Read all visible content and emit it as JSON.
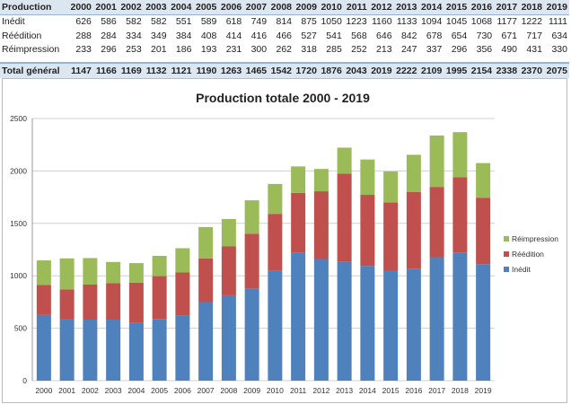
{
  "table": {
    "header_label": "Production",
    "years": [
      "2000",
      "2001",
      "2002",
      "2003",
      "2004",
      "2005",
      "2006",
      "2007",
      "2008",
      "2009",
      "2010",
      "2011",
      "2012",
      "2013",
      "2014",
      "2015",
      "2016",
      "2017",
      "2018",
      "2019"
    ],
    "rows": [
      {
        "label": "Inédit",
        "values": [
          626,
          586,
          582,
          582,
          551,
          589,
          618,
          749,
          814,
          875,
          1050,
          1223,
          1160,
          1133,
          1094,
          1045,
          1068,
          1177,
          1222,
          1111
        ]
      },
      {
        "label": "Réédition",
        "values": [
          288,
          284,
          334,
          349,
          384,
          408,
          414,
          416,
          466,
          527,
          541,
          568,
          646,
          842,
          678,
          654,
          730,
          671,
          717,
          634
        ]
      },
      {
        "label": "Réimpression",
        "values": [
          233,
          296,
          253,
          201,
          186,
          193,
          231,
          300,
          262,
          318,
          285,
          252,
          213,
          247,
          337,
          296,
          356,
          490,
          431,
          330
        ]
      }
    ],
    "total": {
      "label": "Total général",
      "values": [
        1147,
        1166,
        1169,
        1132,
        1121,
        1190,
        1263,
        1465,
        1542,
        1720,
        1876,
        2043,
        2019,
        2222,
        2109,
        1995,
        2154,
        2338,
        2370,
        2075
      ]
    }
  },
  "chart_data": {
    "type": "bar",
    "stacked": true,
    "title": "Production totale 2000 - 2019",
    "categories": [
      "2000",
      "2001",
      "2002",
      "2003",
      "2004",
      "2005",
      "2006",
      "2007",
      "2008",
      "2009",
      "2010",
      "2011",
      "2012",
      "2013",
      "2014",
      "2015",
      "2016",
      "2017",
      "2018",
      "2019"
    ],
    "series": [
      {
        "name": "Inédit",
        "color": "#4f81bd",
        "values": [
          626,
          586,
          582,
          582,
          551,
          589,
          618,
          749,
          814,
          875,
          1050,
          1223,
          1160,
          1133,
          1094,
          1045,
          1068,
          1177,
          1222,
          1111
        ]
      },
      {
        "name": "Réédition",
        "color": "#c0504d",
        "values": [
          288,
          284,
          334,
          349,
          384,
          408,
          414,
          416,
          466,
          527,
          541,
          568,
          646,
          842,
          678,
          654,
          730,
          671,
          717,
          634
        ]
      },
      {
        "name": "Réimpression",
        "color": "#9bbb59",
        "values": [
          233,
          296,
          253,
          201,
          186,
          193,
          231,
          300,
          262,
          318,
          285,
          252,
          213,
          247,
          337,
          296,
          356,
          490,
          431,
          330
        ]
      }
    ],
    "ylim": [
      0,
      2500
    ],
    "yticks": [
      "0",
      "500",
      "1000",
      "1500",
      "2000",
      "2500"
    ],
    "grid": true,
    "legend": "right"
  }
}
